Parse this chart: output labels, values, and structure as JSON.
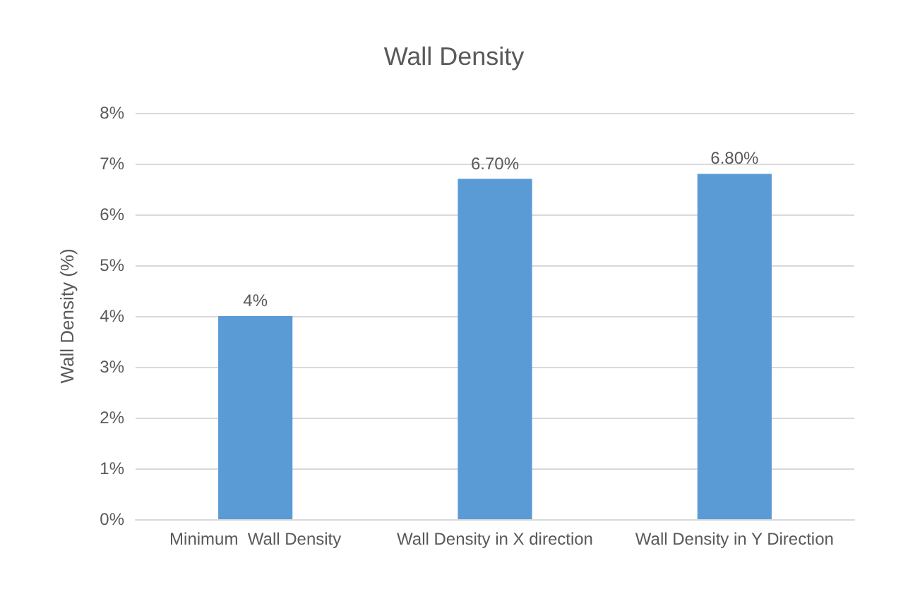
{
  "chart_data": {
    "type": "bar",
    "title": "Wall Density",
    "ylabel": "Wall Density (%)",
    "categories": [
      "Minimum  Wall Density",
      "Wall Density in X direction",
      "Wall Density in Y Direction"
    ],
    "values": [
      4,
      6.7,
      6.8
    ],
    "value_labels": [
      "4%",
      "6.70%",
      "6.80%"
    ],
    "color": "#5b9bd5",
    "ylim": [
      0,
      8
    ],
    "yticks": [
      {
        "value": 0,
        "label": "0%"
      },
      {
        "value": 1,
        "label": "1%"
      },
      {
        "value": 2,
        "label": "2%"
      },
      {
        "value": 3,
        "label": "3%"
      },
      {
        "value": 4,
        "label": "4%"
      },
      {
        "value": 5,
        "label": "5%"
      },
      {
        "value": 6,
        "label": "6%"
      },
      {
        "value": 7,
        "label": "7%"
      },
      {
        "value": 8,
        "label": "8%"
      }
    ],
    "grid": "y"
  }
}
